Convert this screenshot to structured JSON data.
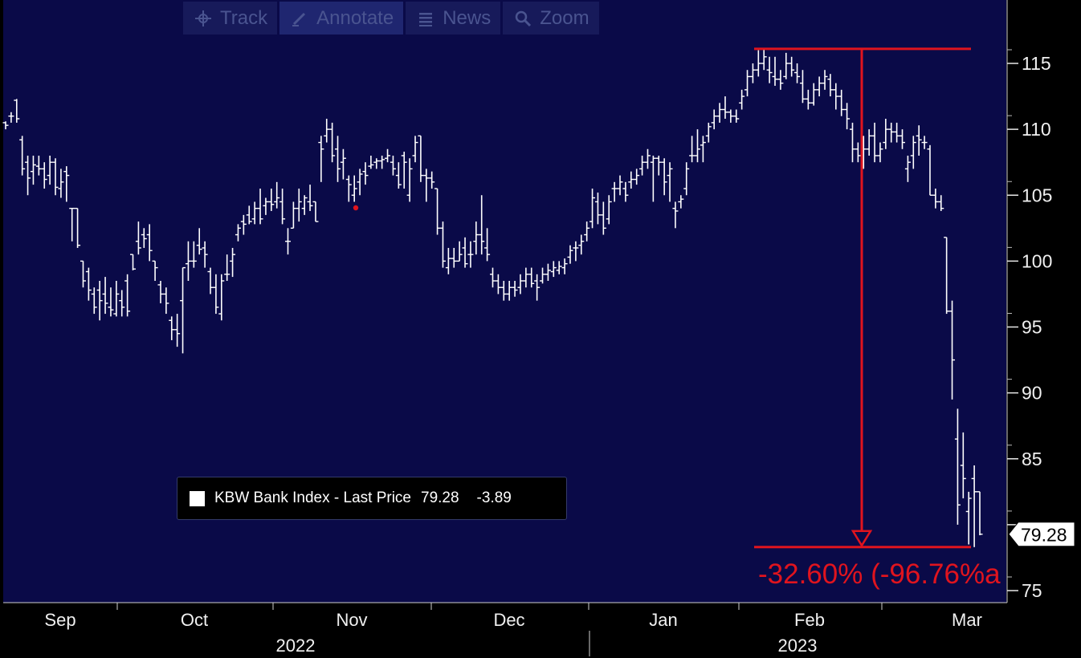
{
  "toolbar": {
    "buttons": [
      {
        "label": "Track",
        "icon": "crosshair-icon"
      },
      {
        "label": "Annotate",
        "icon": "pencil-icon"
      },
      {
        "label": "News",
        "icon": "news-icon"
      },
      {
        "label": "Zoom",
        "icon": "magnifier-icon"
      }
    ]
  },
  "legend": {
    "label": "KBW Bank Index - Last Price",
    "last": "79.28",
    "change": "-3.89"
  },
  "annotation": {
    "text": "-32.60% (-96.76%a",
    "color": "#e0141e"
  },
  "colors": {
    "background": "#0a0a48",
    "bars": "#ffffff",
    "annotation": "#e0141e"
  },
  "chart_data": {
    "type": "ohlc-bar",
    "y_axis_side": "right",
    "ylim": [
      74,
      118
    ],
    "yticks": [
      75,
      80,
      85,
      90,
      95,
      100,
      105,
      110,
      115
    ],
    "x_month_labels": [
      "Sep",
      "Oct",
      "Nov",
      "Dec",
      "Jan",
      "Feb",
      "Mar"
    ],
    "x_year_labels": [
      "2022",
      "2023"
    ],
    "last_price_label": "79.28",
    "last_price": 79.28,
    "peak_value": 116.1,
    "trough_value": 78.3,
    "series": [
      {
        "name": "KBW Bank Index - Last Price",
        "bars": [
          [
            110.5,
            110.6,
            110.0,
            110.3
          ],
          [
            111.0,
            111.3,
            110.5,
            111.0
          ],
          [
            112.2,
            112.3,
            110.5,
            110.8
          ],
          [
            109.2,
            109.5,
            106.5,
            107.0
          ],
          [
            107.5,
            108.0,
            105.0,
            106.3
          ],
          [
            106.8,
            108.0,
            105.8,
            107.3
          ],
          [
            107.2,
            108.0,
            106.5,
            107.0
          ],
          [
            107.0,
            107.5,
            105.5,
            106.2
          ],
          [
            106.5,
            108.0,
            105.8,
            107.5
          ],
          [
            107.5,
            107.8,
            105.0,
            105.6
          ],
          [
            105.5,
            107.0,
            104.8,
            106.0
          ],
          [
            106.8,
            107.2,
            104.5,
            106.5
          ],
          [
            104.0,
            104.0,
            101.5,
            104.0
          ],
          [
            104.0,
            104.0,
            101.0,
            101.2
          ],
          [
            100.0,
            100.0,
            98.0,
            98.5
          ],
          [
            99.2,
            99.5,
            97.0,
            97.8
          ],
          [
            97.5,
            98.0,
            96.0,
            96.5
          ],
          [
            97.8,
            98.5,
            95.5,
            97.0
          ],
          [
            97.5,
            98.8,
            96.0,
            96.8
          ],
          [
            96.5,
            98.0,
            95.8,
            96.3
          ],
          [
            96.0,
            98.5,
            95.8,
            97.5
          ],
          [
            97.0,
            97.8,
            95.8,
            96.5
          ],
          [
            98.5,
            99.0,
            95.8,
            96.2
          ],
          [
            100.5,
            100.5,
            99.3,
            99.4
          ],
          [
            101.5,
            103.0,
            100.5,
            101.0
          ],
          [
            102.0,
            102.5,
            101.0,
            101.7
          ],
          [
            102.0,
            102.8,
            100.0,
            100.8
          ],
          [
            100.0,
            100.0,
            98.5,
            99.5
          ],
          [
            98.2,
            98.5,
            96.8,
            97.5
          ],
          [
            97.5,
            98.0,
            96.0,
            96.8
          ],
          [
            95.5,
            95.8,
            94.0,
            94.8
          ],
          [
            94.8,
            96.0,
            93.5,
            94.5
          ],
          [
            97.0,
            99.5,
            93.0,
            99.5
          ],
          [
            99.8,
            101.5,
            98.5,
            100.0
          ],
          [
            100.0,
            101.5,
            99.5,
            100.0
          ],
          [
            101.2,
            102.5,
            100.5,
            100.9
          ],
          [
            101.0,
            101.5,
            99.5,
            100.5
          ],
          [
            99.2,
            99.5,
            97.5,
            98.0
          ],
          [
            98.0,
            99.0,
            96.0,
            96.5
          ],
          [
            96.0,
            99.0,
            95.5,
            98.5
          ],
          [
            99.0,
            100.5,
            98.5,
            99.0
          ],
          [
            100.0,
            101.0,
            98.8,
            100.5
          ],
          [
            102.0,
            102.8,
            101.5,
            102.5
          ],
          [
            103.0,
            103.5,
            102.0,
            102.8
          ],
          [
            103.5,
            104.2,
            102.8,
            103.0
          ],
          [
            103.2,
            104.5,
            102.8,
            104.0
          ],
          [
            104.0,
            105.5,
            102.8,
            103.2
          ],
          [
            104.2,
            104.8,
            103.5,
            104.5
          ],
          [
            104.5,
            105.5,
            103.8,
            104.3
          ],
          [
            104.5,
            106.0,
            104.0,
            104.8
          ],
          [
            104.5,
            105.5,
            102.8,
            103.2
          ],
          [
            101.5,
            102.5,
            100.5,
            101.5
          ],
          [
            102.5,
            104.5,
            102.5,
            104.0
          ],
          [
            104.0,
            105.5,
            103.0,
            104.5
          ],
          [
            104.0,
            105.0,
            103.5,
            104.8
          ],
          [
            104.5,
            105.8,
            103.8,
            104.2
          ],
          [
            104.5,
            104.5,
            103.0,
            103.0
          ],
          [
            109.0,
            109.5,
            106.0,
            108.5
          ],
          [
            109.5,
            110.8,
            109.0,
            110.0
          ],
          [
            110.0,
            110.5,
            107.5,
            108.0
          ],
          [
            108.5,
            109.5,
            106.0,
            107.0
          ],
          [
            107.5,
            108.5,
            106.2,
            107.8
          ],
          [
            106.2,
            106.5,
            104.5,
            105.8
          ],
          [
            105.0,
            106.5,
            104.5,
            105.5
          ],
          [
            106.0,
            107.0,
            105.0,
            106.6
          ],
          [
            106.8,
            107.5,
            105.8,
            106.5
          ],
          [
            107.2,
            108.0,
            107.0,
            107.3
          ],
          [
            107.5,
            107.8,
            107.0,
            107.6
          ],
          [
            107.6,
            108.0,
            107.0,
            107.7
          ],
          [
            107.8,
            108.5,
            107.5,
            108.0
          ],
          [
            107.5,
            108.0,
            106.5,
            107.0
          ],
          [
            106.5,
            107.5,
            105.5,
            105.8
          ],
          [
            108.0,
            108.3,
            105.5,
            107.5
          ],
          [
            105.0,
            107.8,
            104.5,
            107.0
          ],
          [
            108.0,
            109.5,
            107.5,
            109.0
          ],
          [
            109.5,
            109.5,
            106.0,
            106.5
          ],
          [
            106.5,
            107.0,
            104.5,
            106.3
          ],
          [
            106.3,
            106.8,
            105.5,
            106.0
          ],
          [
            105.5,
            105.5,
            102.0,
            102.5
          ],
          [
            102.5,
            103.0,
            99.5,
            100.0
          ],
          [
            99.5,
            101.0,
            99.0,
            100.2
          ],
          [
            100.2,
            101.0,
            99.5,
            100.0
          ],
          [
            100.0,
            101.5,
            100.0,
            100.5
          ],
          [
            101.0,
            101.8,
            99.5,
            99.8
          ],
          [
            100.5,
            101.5,
            99.5,
            100.5
          ],
          [
            101.5,
            103.0,
            100.5,
            102.0
          ],
          [
            102.0,
            105.0,
            100.5,
            101.5
          ],
          [
            101.0,
            102.5,
            100.0,
            100.5
          ],
          [
            99.0,
            99.5,
            98.0,
            98.5
          ],
          [
            98.5,
            99.0,
            97.5,
            98.0
          ],
          [
            98.0,
            98.5,
            97.0,
            97.5
          ],
          [
            97.5,
            98.5,
            97.0,
            98.0
          ],
          [
            98.0,
            98.5,
            97.3,
            97.8
          ],
          [
            98.0,
            99.0,
            97.5,
            98.5
          ],
          [
            98.5,
            99.5,
            98.0,
            99.0
          ],
          [
            99.0,
            99.5,
            98.0,
            98.3
          ],
          [
            98.5,
            99.0,
            97.0,
            98.0
          ],
          [
            98.5,
            99.5,
            98.3,
            99.0
          ],
          [
            99.0,
            99.8,
            98.5,
            99.3
          ],
          [
            99.2,
            100.0,
            98.8,
            99.5
          ],
          [
            99.3,
            100.0,
            99.0,
            99.6
          ],
          [
            99.5,
            100.2,
            99.0,
            99.8
          ],
          [
            100.3,
            101.2,
            99.8,
            100.8
          ],
          [
            101.0,
            101.5,
            100.0,
            101.0
          ],
          [
            101.2,
            102.0,
            100.5,
            101.5
          ],
          [
            102.0,
            103.0,
            101.5,
            102.5
          ],
          [
            103.0,
            105.5,
            102.5,
            104.8
          ],
          [
            104.5,
            105.2,
            102.8,
            103.5
          ],
          [
            103.5,
            104.5,
            102.0,
            102.5
          ],
          [
            103.2,
            105.0,
            102.8,
            104.5
          ],
          [
            105.5,
            106.0,
            104.5,
            105.5
          ],
          [
            105.5,
            106.5,
            105.0,
            106.0
          ],
          [
            105.5,
            106.0,
            104.5,
            105.0
          ],
          [
            106.0,
            106.8,
            105.5,
            106.2
          ],
          [
            106.2,
            107.0,
            105.8,
            106.5
          ],
          [
            107.0,
            108.0,
            106.5,
            107.5
          ],
          [
            107.5,
            108.5,
            107.0,
            108.0
          ],
          [
            107.5,
            108.0,
            104.5,
            107.8
          ],
          [
            107.8,
            108.0,
            106.5,
            107.5
          ],
          [
            107.5,
            107.8,
            105.0,
            106.0
          ],
          [
            106.5,
            107.5,
            104.5,
            107.0
          ],
          [
            104.0,
            104.5,
            102.5,
            103.8
          ],
          [
            104.5,
            105.0,
            104.0,
            104.7
          ],
          [
            105.5,
            107.5,
            105.0,
            107.0
          ],
          [
            108.0,
            109.5,
            107.5,
            108.0
          ],
          [
            108.0,
            110.0,
            107.5,
            108.5
          ],
          [
            108.8,
            109.5,
            107.5,
            109.0
          ],
          [
            109.5,
            110.5,
            109.0,
            110.2
          ],
          [
            110.5,
            111.5,
            110.0,
            111.0
          ],
          [
            111.0,
            112.0,
            110.5,
            111.5
          ],
          [
            111.5,
            112.5,
            110.8,
            111.3
          ],
          [
            111.3,
            111.5,
            110.5,
            111.0
          ],
          [
            111.0,
            111.5,
            110.5,
            110.8
          ],
          [
            112.0,
            113.0,
            111.5,
            112.5
          ],
          [
            113.0,
            114.5,
            112.5,
            114.0
          ],
          [
            114.0,
            115.0,
            113.5,
            114.5
          ],
          [
            114.5,
            116.0,
            114.0,
            115.0
          ],
          [
            115.0,
            116.1,
            114.5,
            115.5
          ],
          [
            114.5,
            115.5,
            113.5,
            114.3
          ],
          [
            114.0,
            115.5,
            113.3,
            113.8
          ],
          [
            113.8,
            114.5,
            113.0,
            113.5
          ],
          [
            114.0,
            115.8,
            113.8,
            115.0
          ],
          [
            115.0,
            115.5,
            114.0,
            114.5
          ],
          [
            114.3,
            115.0,
            113.5,
            114.0
          ],
          [
            113.5,
            114.5,
            112.0,
            112.3
          ],
          [
            112.3,
            113.0,
            111.5,
            112.0
          ],
          [
            112.0,
            113.5,
            111.8,
            113.0
          ],
          [
            113.0,
            114.0,
            112.5,
            113.5
          ],
          [
            113.5,
            114.5,
            113.0,
            114.0
          ],
          [
            113.8,
            114.2,
            112.5,
            113.0
          ],
          [
            113.0,
            113.5,
            111.5,
            112.5
          ],
          [
            112.5,
            113.0,
            111.0,
            111.5
          ],
          [
            111.5,
            112.0,
            110.0,
            110.8
          ],
          [
            110.0,
            110.5,
            107.5,
            108.5
          ],
          [
            108.5,
            109.0,
            107.5,
            108.0
          ],
          [
            108.0,
            109.5,
            107.0,
            108.5
          ],
          [
            108.5,
            110.0,
            108.0,
            109.5
          ],
          [
            109.5,
            110.5,
            107.5,
            108.0
          ],
          [
            108.0,
            109.0,
            107.5,
            108.5
          ],
          [
            109.0,
            110.8,
            108.5,
            110.0
          ],
          [
            110.0,
            110.5,
            109.0,
            109.8
          ],
          [
            109.8,
            110.5,
            109.0,
            109.5
          ],
          [
            109.5,
            110.0,
            108.5,
            109.0
          ],
          [
            107.0,
            108.0,
            106.0,
            107.5
          ],
          [
            108.0,
            109.5,
            107.0,
            109.0
          ],
          [
            109.5,
            110.3,
            108.0,
            109.2
          ],
          [
            109.0,
            109.5,
            108.5,
            109.0
          ],
          [
            108.5,
            108.8,
            105.0,
            105.0
          ],
          [
            105.0,
            105.5,
            104.0,
            104.5
          ],
          [
            104.5,
            105.0,
            103.8,
            104.0
          ],
          [
            101.8,
            101.8,
            96.0,
            96.2
          ],
          [
            96.2,
            97.0,
            89.5,
            92.5
          ],
          [
            86.5,
            88.8,
            80.0,
            81.5
          ],
          [
            84.5,
            87.0,
            82.0,
            83.5
          ],
          [
            81.0,
            82.5,
            78.5,
            82.0
          ],
          [
            83.5,
            84.5,
            78.3,
            82.5
          ],
          [
            82.5,
            82.5,
            79.2,
            79.28
          ]
        ]
      }
    ]
  }
}
